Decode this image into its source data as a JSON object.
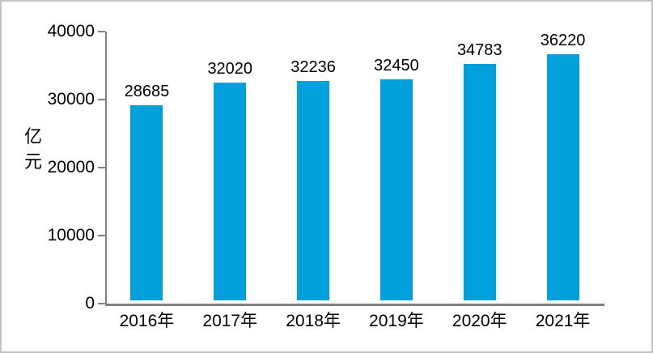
{
  "chart_data": {
    "type": "bar",
    "title": "",
    "categories": [
      "2016年",
      "2017年",
      "2018年",
      "2019年",
      "2020年",
      "2021年"
    ],
    "values": [
      28685,
      32020,
      32236,
      32450,
      34783,
      36220
    ],
    "value_labels": [
      "28685",
      "32020",
      "32236",
      "32450",
      "34783",
      "36220"
    ],
    "xlabel": "",
    "ylabel": "亿元",
    "ylim": [
      0,
      40000
    ],
    "yticks": [
      0,
      10000,
      20000,
      30000,
      40000
    ],
    "ytick_labels": [
      "0",
      "10000",
      "20000",
      "30000",
      "40000"
    ],
    "grid": false,
    "legend": "none",
    "colors": {
      "bar": "#00a0dc",
      "axis": "#808080",
      "text": "#000000",
      "background": "#ffffff",
      "frame_border": "#c3c3c3"
    }
  }
}
